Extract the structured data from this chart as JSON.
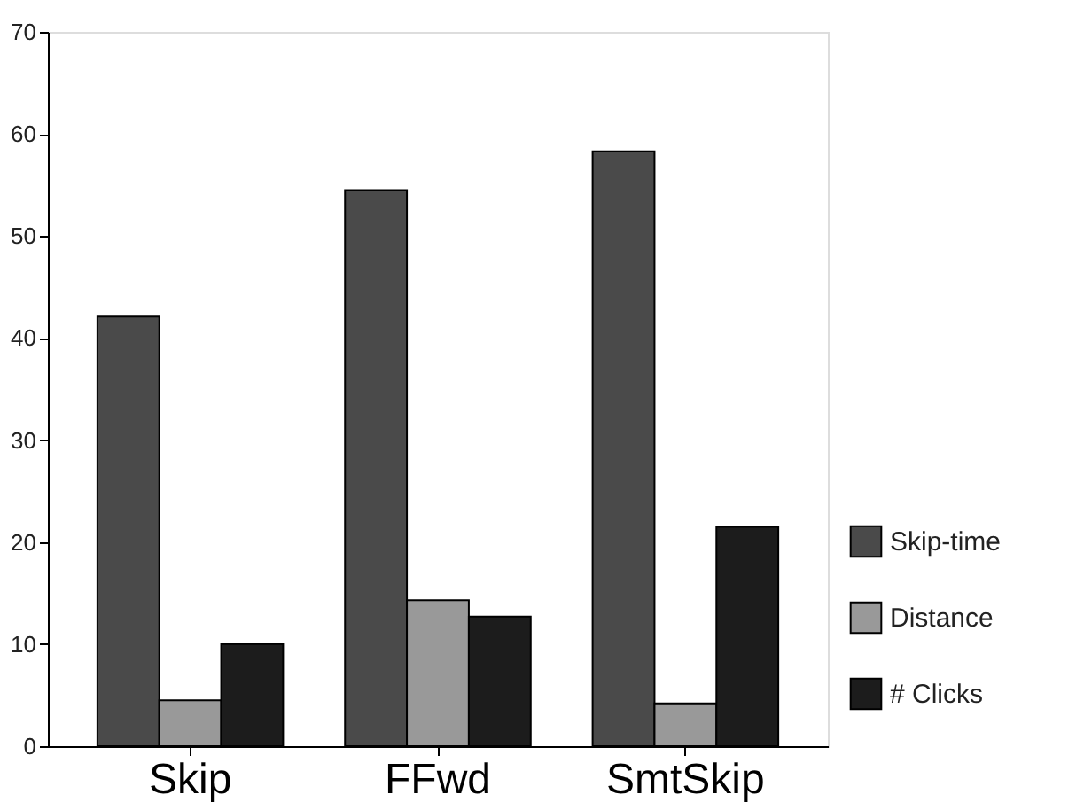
{
  "chart_data": {
    "type": "bar",
    "categories": [
      "Skip",
      "FFwd",
      "SmtSkip"
    ],
    "series": [
      {
        "name": "Skip-time",
        "color": "#4a4a4a",
        "values": [
          42.1,
          54.5,
          58.3
        ]
      },
      {
        "name": "Distance",
        "color": "#999999",
        "values": [
          4.5,
          14.3,
          4.2
        ]
      },
      {
        "name": "# Clicks",
        "color": "#1c1c1c",
        "values": [
          10.0,
          12.7,
          21.5
        ]
      }
    ],
    "ylim": [
      0,
      70
    ],
    "yticks": [
      0,
      10,
      20,
      30,
      40,
      50,
      60,
      70
    ],
    "grid": false,
    "legend": "bottom right"
  }
}
